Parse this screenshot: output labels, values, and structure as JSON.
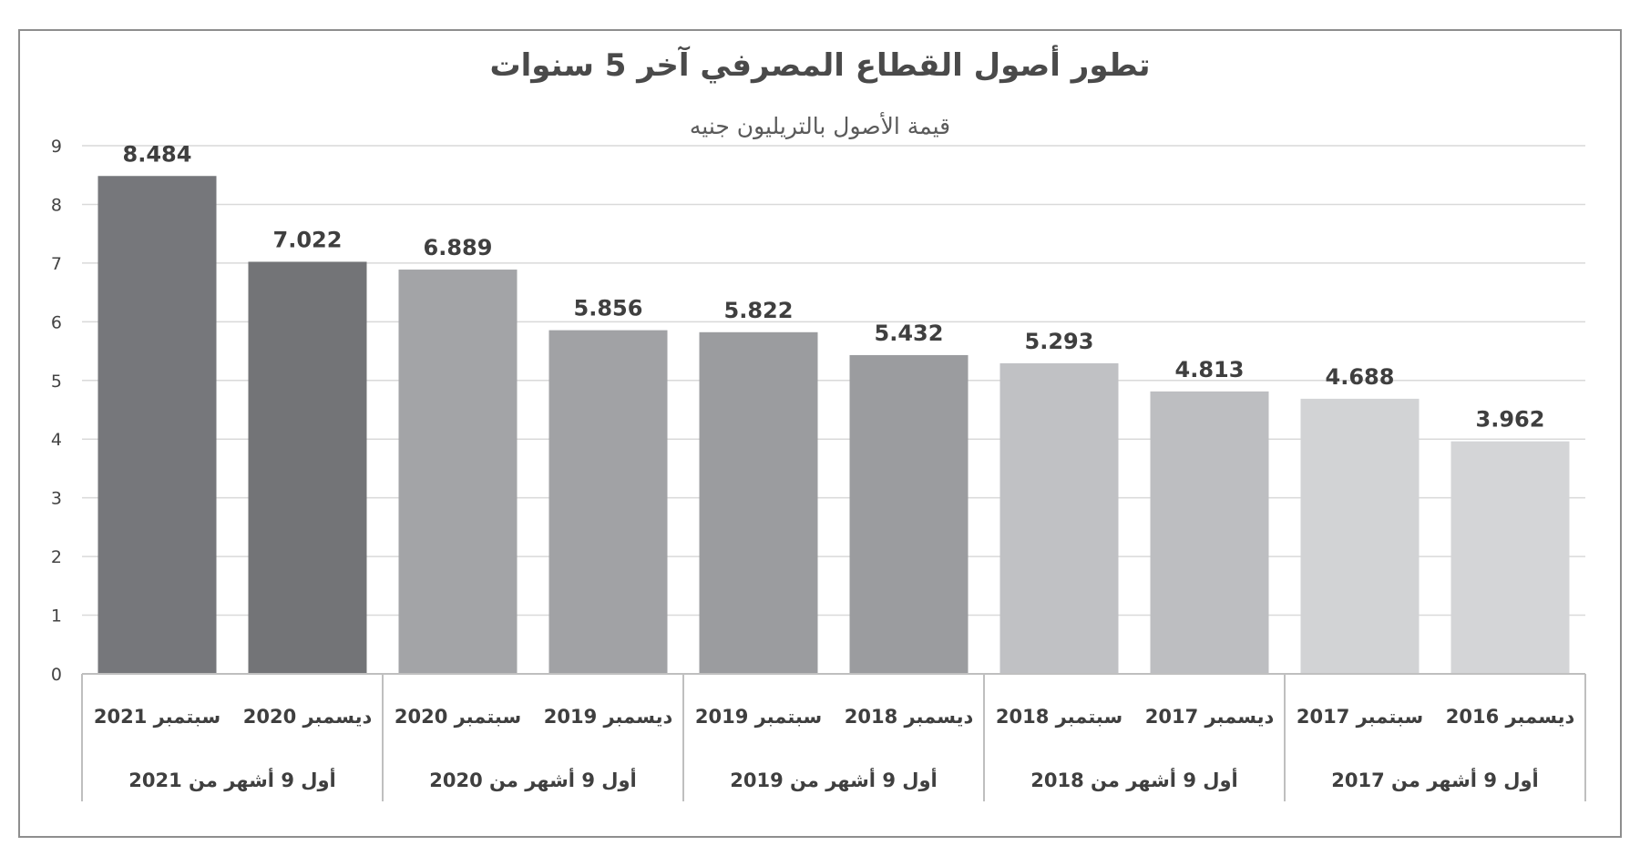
{
  "chart_data": {
    "type": "bar",
    "title": "تطور أصول القطاع المصرفي آخر 5 سنوات",
    "subtitle": "قيمة الأصول بالتريليون جنيه",
    "xlabel": "",
    "ylabel": "",
    "ylim": [
      0,
      9
    ],
    "y_ticks": [
      0,
      1,
      2,
      3,
      4,
      5,
      6,
      7,
      8,
      9
    ],
    "grid": true,
    "categories": [
      "سبتمبر 2021",
      "ديسمبر 2020",
      "سبتمبر 2020",
      "ديسمبر 2019",
      "سبتمبر 2019",
      "ديسمبر 2018",
      "سبتمبر 2018",
      "ديسمبر 2017",
      "سبتمبر 2017",
      "ديسمبر 2016"
    ],
    "values": [
      8.484,
      7.022,
      6.889,
      5.856,
      5.822,
      5.432,
      5.293,
      4.813,
      4.688,
      3.962
    ],
    "value_labels": [
      "8.484",
      "7.022",
      "6.889",
      "5.856",
      "5.822",
      "5.432",
      "5.293",
      "4.813",
      "4.688",
      "3.962"
    ],
    "groups": [
      {
        "label": "أول 9 أشهر من 2021",
        "categories": [
          0,
          1
        ]
      },
      {
        "label": "أول 9 أشهر من 2020",
        "categories": [
          2,
          3
        ]
      },
      {
        "label": "أول 9 أشهر من 2019",
        "categories": [
          4,
          5
        ]
      },
      {
        "label": "أول 9 أشهر من 2018",
        "categories": [
          6,
          7
        ]
      },
      {
        "label": "أول 9 أشهر من 2017",
        "categories": [
          8,
          9
        ]
      }
    ],
    "bar_colors": [
      "#76777b",
      "#737477",
      "#a3a4a7",
      "#a1a2a5",
      "#9b9c9f",
      "#9b9c9f",
      "#c0c1c4",
      "#bdbec1",
      "#d2d3d5",
      "#d4d5d7"
    ],
    "grid_color": "#d9d9d9",
    "axis_color": "#bfbfbf"
  }
}
